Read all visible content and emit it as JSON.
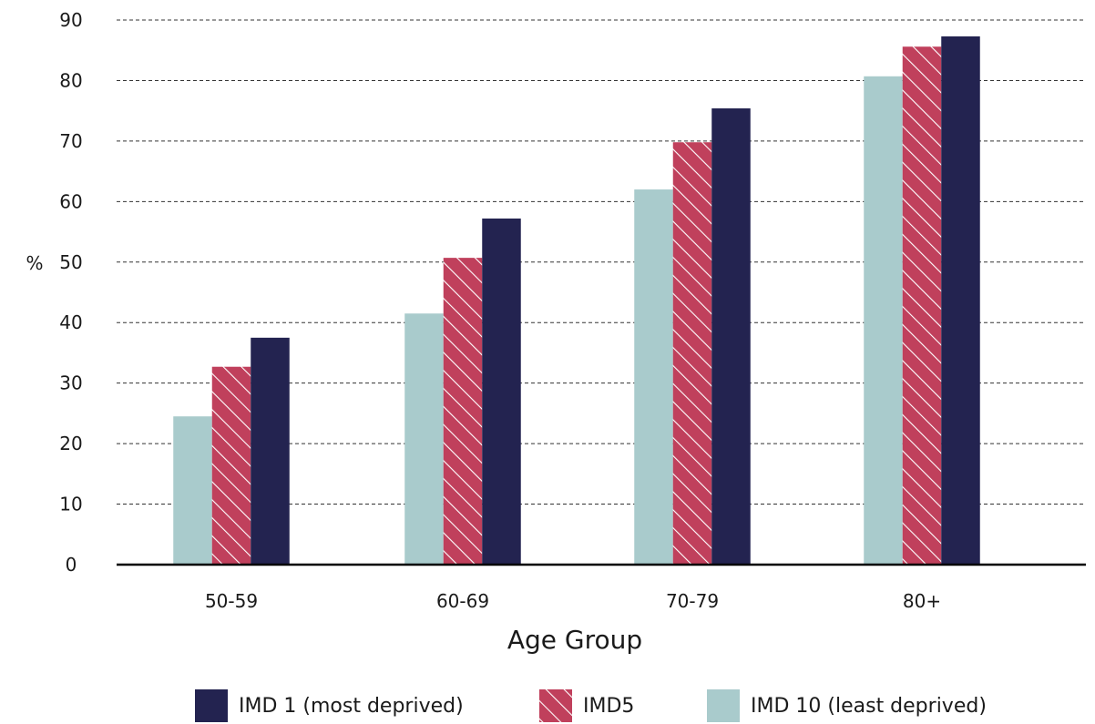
{
  "chart_data": {
    "type": "bar",
    "categories": [
      "50-59",
      "60-69",
      "70-79",
      "80+"
    ],
    "series": [
      {
        "name": "IMD 10 (least deprived)",
        "values": [
          24.5,
          41.5,
          62,
          80.7
        ],
        "color": "#a9cbcc",
        "pattern": "solid"
      },
      {
        "name": "IMD5",
        "values": [
          32.7,
          50.7,
          69.8,
          85.6
        ],
        "color": "#c0405c",
        "pattern": "hatched"
      },
      {
        "name": "IMD 1 (most deprived)",
        "values": [
          37.5,
          57.2,
          75.4,
          87.3
        ],
        "color": "#232350",
        "pattern": "solid"
      }
    ],
    "title": "",
    "xlabel": "Age Group",
    "ylabel": "%",
    "ylim": [
      0,
      90
    ],
    "yticks": [
      0,
      10,
      20,
      30,
      40,
      50,
      60,
      70,
      80,
      90
    ],
    "grid": true,
    "legend_position": "bottom",
    "legend_order": [
      "IMD 1 (most deprived)",
      "IMD5",
      "IMD 10 (least deprived)"
    ]
  }
}
